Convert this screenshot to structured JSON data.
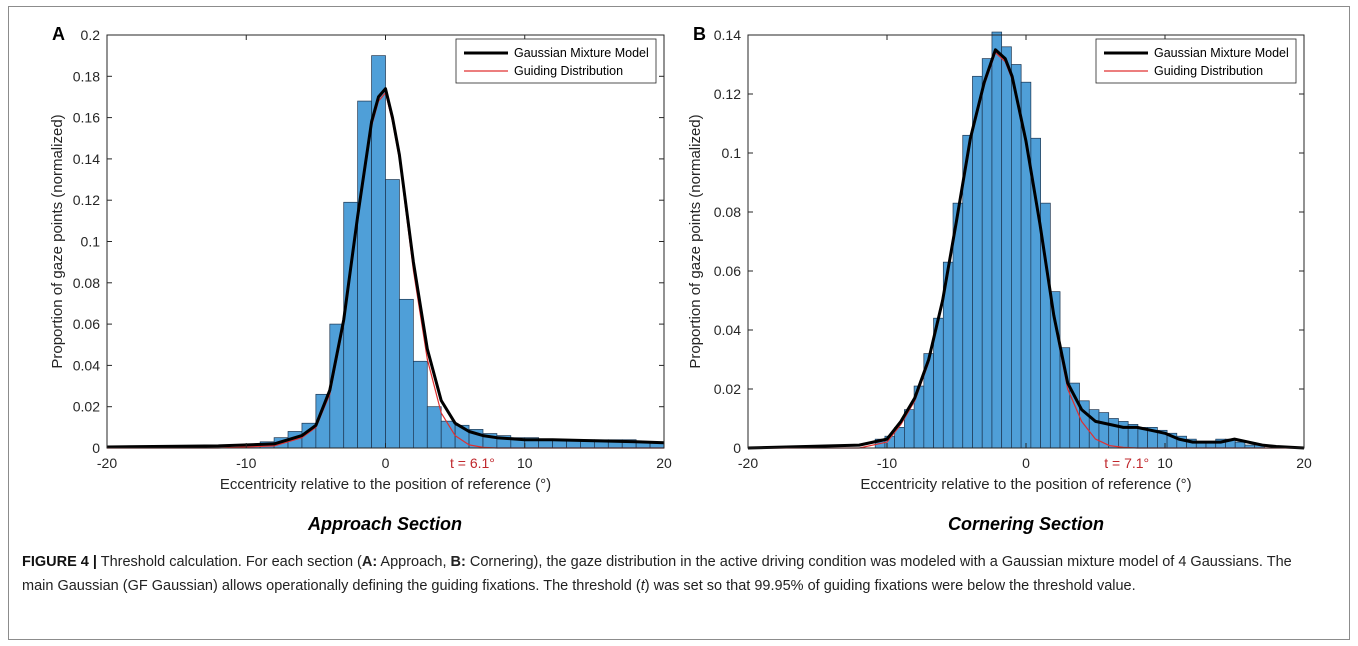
{
  "chart_data": [
    {
      "type": "bar",
      "panel_label": "A",
      "section_title": "Approach Section",
      "xlabel": "Eccentricity relative to the position of reference (°)",
      "ylabel": "Proportion of gaze points (normalized)",
      "xlim": [
        -20,
        20
      ],
      "ylim": [
        0,
        0.2
      ],
      "xticks": [
        -20,
        -10,
        0,
        10,
        20
      ],
      "yticks": [
        0,
        0.02,
        0.04,
        0.06,
        0.08,
        0.1,
        0.12,
        0.14,
        0.16,
        0.18,
        0.2
      ],
      "bin_width": 1,
      "histogram": {
        "bin_centers": [
          -9.5,
          -8.5,
          -7.5,
          -6.5,
          -5.5,
          -4.5,
          -3.5,
          -2.5,
          -1.5,
          -0.5,
          0.5,
          1.5,
          2.5,
          3.5,
          4.5,
          5.5,
          6.5,
          7.5,
          8.5,
          9.5,
          10.5,
          11.5,
          12.5,
          13.5,
          14.5,
          15.5,
          16.5,
          17.5,
          18.5,
          19.5
        ],
        "values": [
          0.002,
          0.003,
          0.005,
          0.008,
          0.012,
          0.026,
          0.06,
          0.119,
          0.168,
          0.19,
          0.13,
          0.072,
          0.042,
          0.02,
          0.013,
          0.011,
          0.009,
          0.007,
          0.006,
          0.005,
          0.005,
          0.004,
          0.004,
          0.004,
          0.004,
          0.004,
          0.004,
          0.004,
          0.003,
          0.003
        ]
      },
      "series": [
        {
          "name": "Gaussian Mixture Model",
          "color": "#000000",
          "x": [
            -20,
            -12,
            -8,
            -6,
            -5,
            -4,
            -3,
            -2,
            -1,
            -0.5,
            0,
            0.5,
            1,
            2,
            3,
            4,
            5,
            6,
            7,
            8,
            10,
            12,
            15,
            18,
            20
          ],
          "y": [
            0.0005,
            0.001,
            0.002,
            0.006,
            0.011,
            0.028,
            0.062,
            0.112,
            0.158,
            0.17,
            0.174,
            0.16,
            0.142,
            0.09,
            0.048,
            0.023,
            0.012,
            0.008,
            0.006,
            0.005,
            0.004,
            0.004,
            0.0035,
            0.003,
            0.0025
          ]
        },
        {
          "name": "Guiding Distribution",
          "color": "#e03030",
          "x": [
            -20,
            -12,
            -8,
            -6,
            -5,
            -4,
            -3,
            -2,
            -1,
            -0.5,
            0,
            0.5,
            1,
            2,
            3,
            4,
            5,
            6,
            7,
            8,
            10,
            20
          ],
          "y": [
            0,
            0,
            0.001,
            0.005,
            0.01,
            0.026,
            0.06,
            0.11,
            0.156,
            0.168,
            0.172,
            0.158,
            0.14,
            0.086,
            0.043,
            0.017,
            0.006,
            0.0015,
            0.0003,
            0,
            0,
            0
          ]
        }
      ],
      "threshold": {
        "value": 6.1,
        "label": "t = 6.1°"
      },
      "legend": "top-right"
    },
    {
      "type": "bar",
      "panel_label": "B",
      "section_title": "Cornering Section",
      "xlabel": "Eccentricity relative to the position of reference (°)",
      "ylabel": "Proportion of gaze points (normalized)",
      "xlim": [
        -20,
        20
      ],
      "ylim": [
        0,
        0.14
      ],
      "xticks": [
        -20,
        -10,
        0,
        10,
        20
      ],
      "yticks": [
        0,
        0.02,
        0.04,
        0.06,
        0.08,
        0.1,
        0.12,
        0.14
      ],
      "bin_width": 0.7,
      "histogram": {
        "bin_centers": [
          -10.5,
          -9.8,
          -9.1,
          -8.4,
          -7.7,
          -7.0,
          -6.3,
          -5.6,
          -4.9,
          -4.2,
          -3.5,
          -2.8,
          -2.1,
          -1.4,
          -0.7,
          0.0,
          0.7,
          1.4,
          2.1,
          2.8,
          3.5,
          4.2,
          4.9,
          5.6,
          6.3,
          7.0,
          7.7,
          8.4,
          9.1,
          9.8,
          10.5,
          11.2,
          11.9,
          12.6,
          13.3,
          14.0,
          14.7,
          15.4,
          16.1,
          16.8
        ],
        "values": [
          0.003,
          0.004,
          0.007,
          0.013,
          0.021,
          0.032,
          0.044,
          0.063,
          0.083,
          0.106,
          0.126,
          0.132,
          0.141,
          0.136,
          0.13,
          0.124,
          0.105,
          0.083,
          0.053,
          0.034,
          0.022,
          0.016,
          0.013,
          0.012,
          0.01,
          0.009,
          0.008,
          0.007,
          0.007,
          0.006,
          0.005,
          0.004,
          0.003,
          0.002,
          0.002,
          0.003,
          0.003,
          0.002,
          0.001,
          0.001
        ]
      },
      "series": [
        {
          "name": "Gaussian Mixture Model",
          "color": "#000000",
          "x": [
            -20,
            -12,
            -10,
            -9,
            -8,
            -7,
            -6,
            -5,
            -4,
            -3,
            -2.2,
            -1.5,
            -1,
            0,
            1,
            2,
            3,
            4,
            5,
            6,
            7,
            8,
            9,
            10,
            11,
            12,
            13,
            14,
            15,
            16,
            17,
            18,
            20
          ],
          "y": [
            0,
            0.001,
            0.003,
            0.009,
            0.017,
            0.03,
            0.05,
            0.077,
            0.105,
            0.124,
            0.135,
            0.132,
            0.126,
            0.104,
            0.076,
            0.045,
            0.022,
            0.013,
            0.009,
            0.008,
            0.007,
            0.007,
            0.006,
            0.005,
            0.003,
            0.002,
            0.002,
            0.002,
            0.003,
            0.002,
            0.001,
            0.0005,
            0
          ]
        },
        {
          "name": "Guiding Distribution",
          "color": "#e03030",
          "x": [
            -20,
            -12,
            -10,
            -9,
            -8,
            -7,
            -6,
            -5,
            -4,
            -3,
            -2.2,
            -1.5,
            -1,
            0,
            1,
            2,
            3,
            4,
            5,
            6,
            7,
            8,
            20
          ],
          "y": [
            0,
            0,
            0.002,
            0.008,
            0.016,
            0.029,
            0.05,
            0.076,
            0.104,
            0.123,
            0.134,
            0.131,
            0.125,
            0.103,
            0.075,
            0.044,
            0.02,
            0.009,
            0.003,
            0.0008,
            0.0002,
            0,
            0
          ]
        }
      ],
      "threshold": {
        "value": 7.1,
        "label": "t = 7.1°"
      },
      "legend": "top-right"
    }
  ],
  "caption": {
    "figure_label": "FIGURE 4 |",
    "intro": " Threshold calculation. For each section (",
    "a_label": "A:",
    "a_text": " Approach, ",
    "b_label": "B:",
    "b_text": " Cornering), the gaze distribution in the active driving condition was modeled with a Gaussian mixture model of 4 Gaussians. The main Gaussian (GF Gaussian) allows operationally defining the guiding fixations. The threshold (",
    "t_symbol": "t",
    "end": ") was set so that 99.95% of guiding fixations were below the threshold value."
  },
  "colors": {
    "bar_fill": "#4f9fd8",
    "bar_edge": "#1c3550",
    "threshold_text": "#c0282d"
  }
}
